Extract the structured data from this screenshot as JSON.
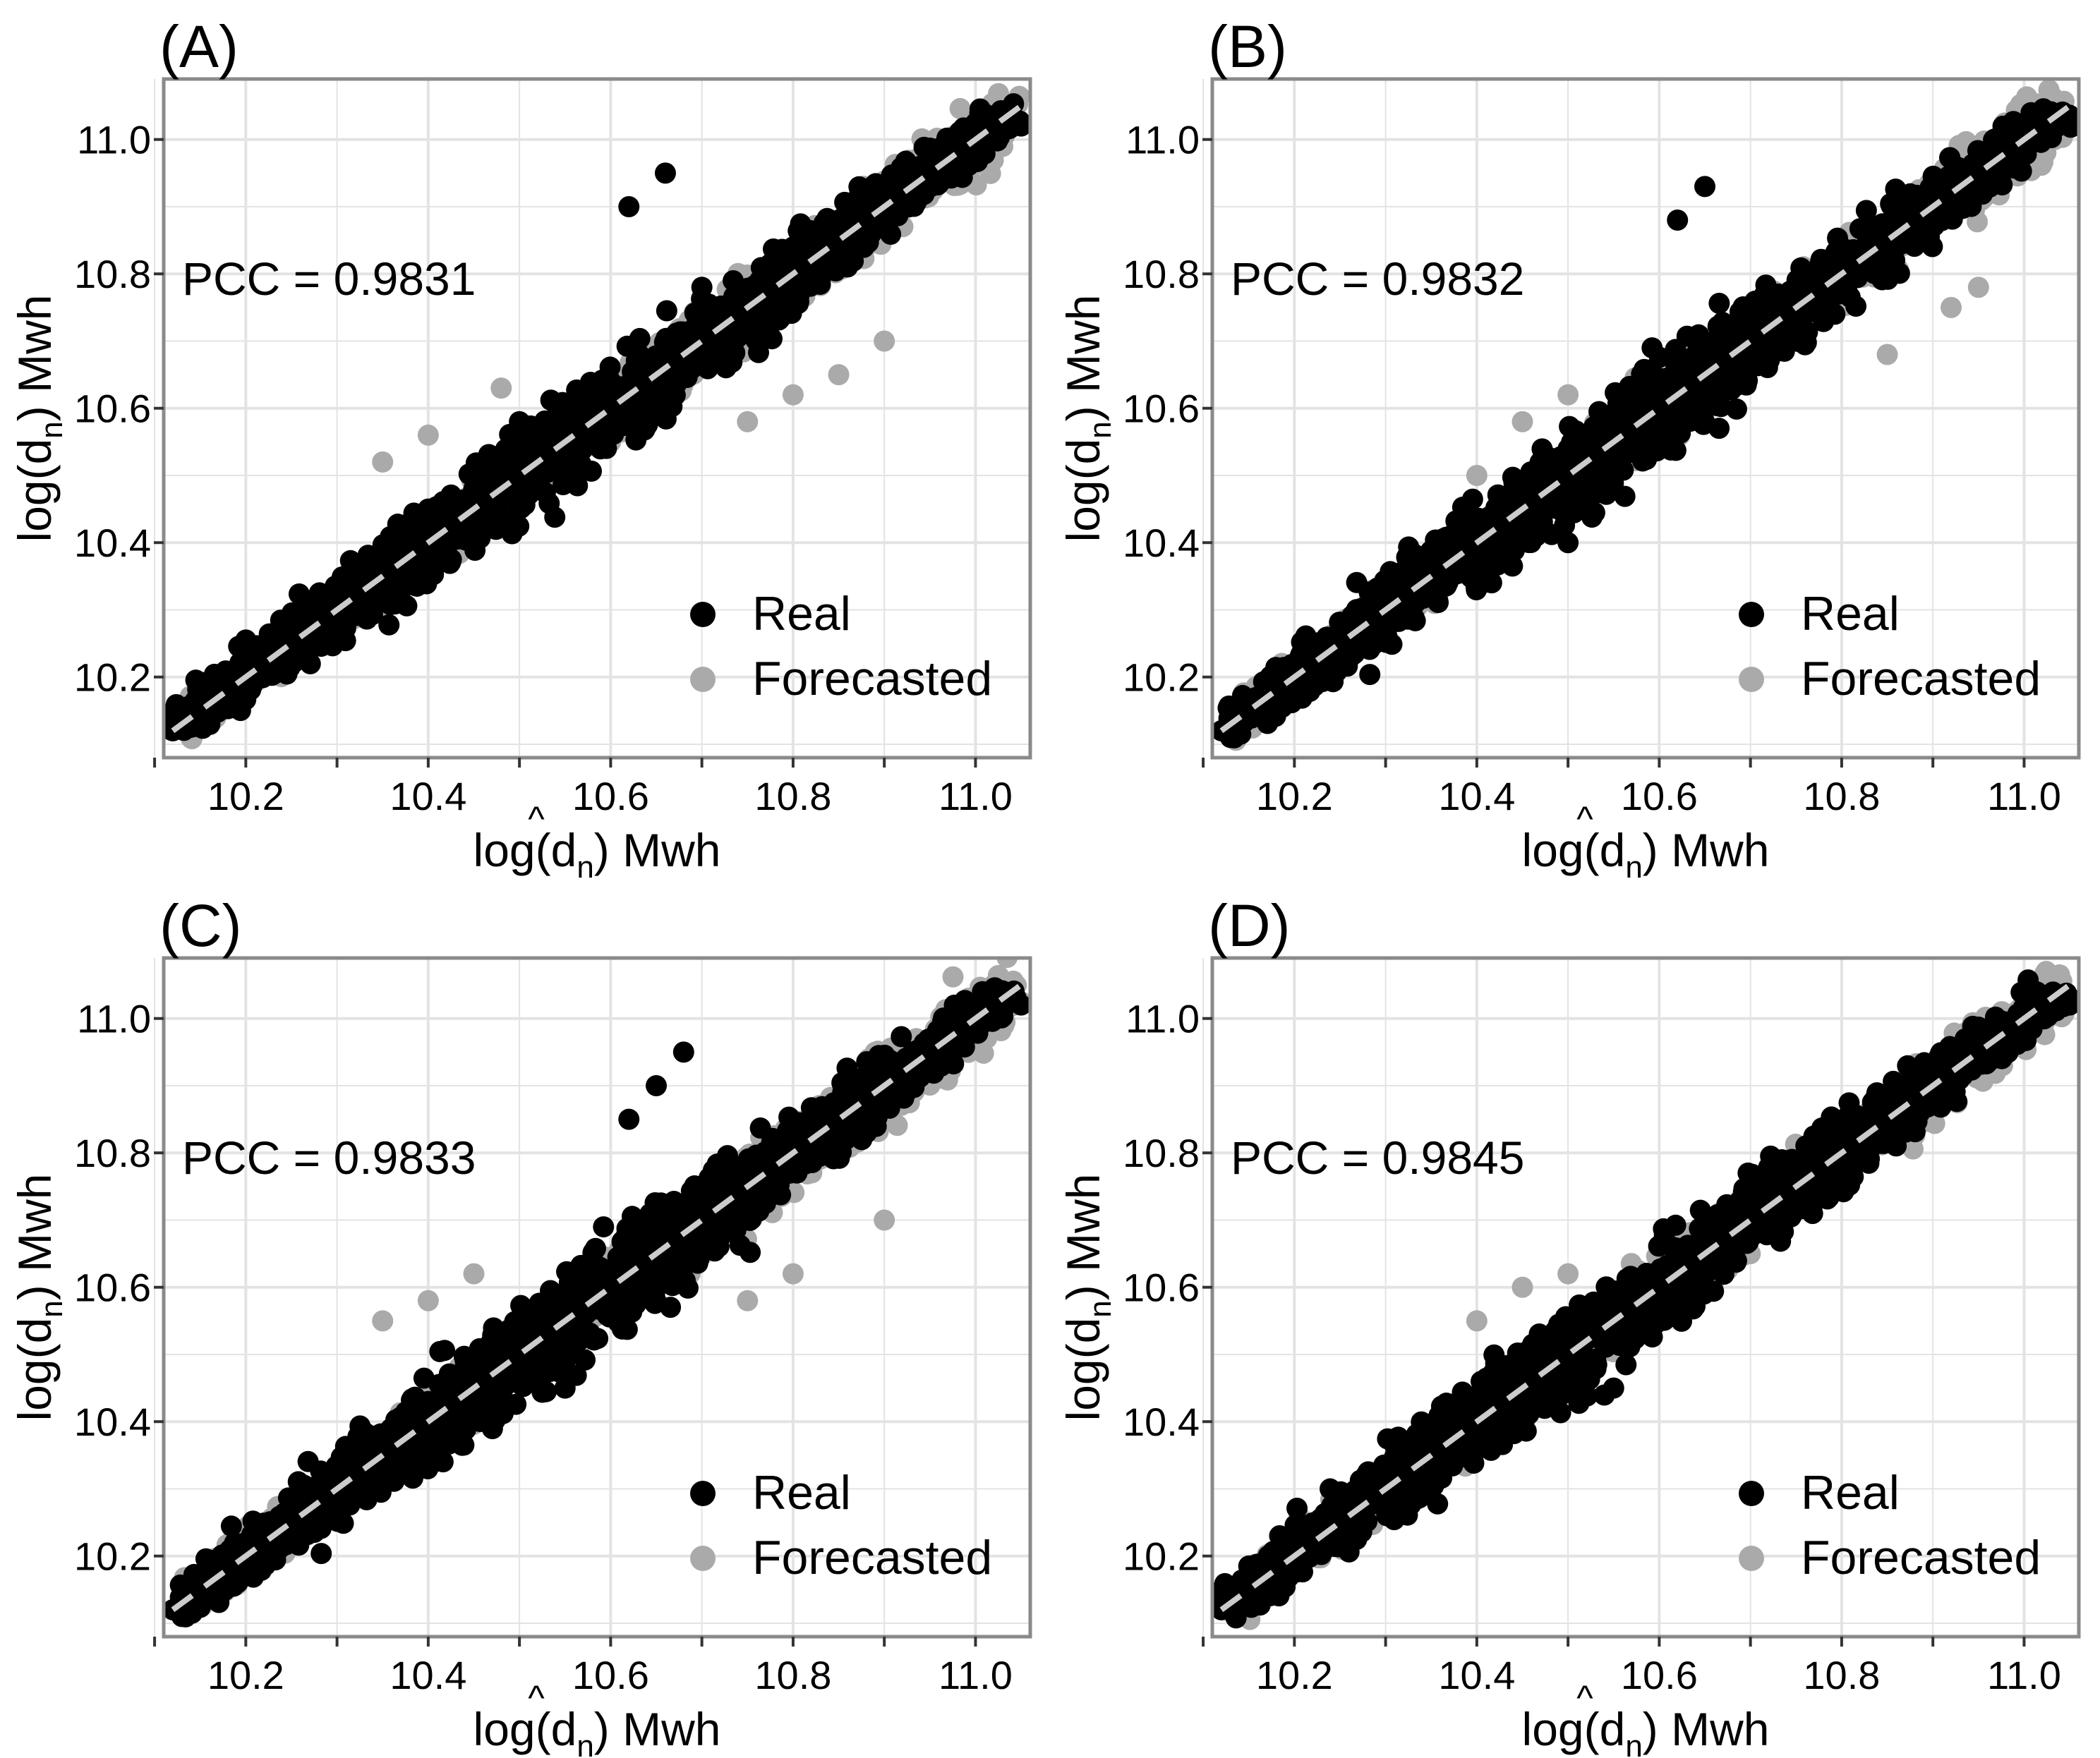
{
  "figure": {
    "axis_x_label_prefix": "log(",
    "axis_x_label_var": "d",
    "axis_x_label_hat": "^",
    "axis_x_label_sub": "n",
    "axis_x_label_suffix": ")  Mwh",
    "axis_y_label_prefix": "log(",
    "axis_y_label_var": "d",
    "axis_y_label_sub": "n",
    "axis_y_label_suffix": ")  Mwh",
    "legend": [
      {
        "label": "Real",
        "color": "#000000"
      },
      {
        "label": "Forecasted",
        "color": "#aaaaaa"
      }
    ],
    "colors": {
      "real": "#000000",
      "forecasted": "#aaaaaa",
      "identity_line": "#cccccc",
      "grid": "#e3e3e3",
      "frame": "#8a8a8a"
    }
  },
  "chart_data": [
    {
      "type": "scatter",
      "panel_label": "(A)",
      "annotation": "PCC = 0.9831",
      "pcc": 0.9831,
      "xlim": [
        10.11,
        11.06
      ],
      "ylim": [
        10.08,
        11.09
      ],
      "x_ticks": [
        "10.2",
        "10.4",
        "10.6",
        "10.8",
        "11.0"
      ],
      "y_ticks": [
        "10.2",
        "10.4",
        "10.6",
        "10.8",
        "11.0"
      ],
      "xlabel": "log(d̂n) Mwh",
      "ylabel": "log(dn) Mwh",
      "reference_line": {
        "from": [
          10.12,
          10.12
        ],
        "to": [
          11.05,
          11.05
        ],
        "style": "dashed"
      },
      "series": [
        {
          "name": "Real",
          "points": [
            [
              10.12,
              10.12
            ],
            [
              10.18,
              10.17
            ],
            [
              10.25,
              10.28
            ],
            [
              10.3,
              10.27
            ],
            [
              10.4,
              10.45
            ],
            [
              10.45,
              10.42
            ],
            [
              10.5,
              10.58
            ],
            [
              10.55,
              10.52
            ],
            [
              10.6,
              10.64
            ],
            [
              10.62,
              10.58
            ],
            [
              10.7,
              10.78
            ],
            [
              10.75,
              10.72
            ],
            [
              10.8,
              10.84
            ],
            [
              10.85,
              10.88
            ],
            [
              10.9,
              10.9
            ],
            [
              10.95,
              10.97
            ],
            [
              11.0,
              11.0
            ],
            [
              11.05,
              11.02
            ],
            [
              10.62,
              10.9
            ],
            [
              10.66,
              10.95
            ],
            [
              10.36,
              10.39
            ],
            [
              10.5,
              10.45
            ]
          ]
        },
        {
          "name": "Forecasted",
          "points": [
            [
              10.12,
              10.12
            ],
            [
              10.2,
              10.22
            ],
            [
              10.3,
              10.3
            ],
            [
              10.35,
              10.52
            ],
            [
              10.4,
              10.56
            ],
            [
              10.48,
              10.63
            ],
            [
              10.55,
              10.52
            ],
            [
              10.6,
              10.61
            ],
            [
              10.7,
              10.7
            ],
            [
              10.8,
              10.8
            ],
            [
              10.9,
              10.92
            ],
            [
              11.0,
              11.02
            ],
            [
              11.02,
              11.05
            ],
            [
              10.75,
              10.58
            ],
            [
              10.8,
              10.62
            ],
            [
              10.85,
              10.65
            ],
            [
              10.9,
              10.7
            ],
            [
              10.6,
              10.55
            ]
          ]
        }
      ]
    },
    {
      "type": "scatter",
      "panel_label": "(B)",
      "annotation": "PCC = 0.9832",
      "pcc": 0.9832,
      "xlim": [
        10.11,
        11.06
      ],
      "ylim": [
        10.08,
        11.09
      ],
      "x_ticks": [
        "10.2",
        "10.4",
        "10.6",
        "10.8",
        "11.0"
      ],
      "y_ticks": [
        "10.2",
        "10.4",
        "10.6",
        "10.8",
        "11.0"
      ],
      "xlabel": "log(d̂n) Mwh",
      "ylabel": "log(dn) Mwh",
      "reference_line": {
        "from": [
          10.12,
          10.12
        ],
        "to": [
          11.05,
          11.05
        ],
        "style": "dashed"
      },
      "series": [
        {
          "name": "Real",
          "points": [
            [
              10.12,
              10.12
            ],
            [
              10.2,
              10.18
            ],
            [
              10.3,
              10.3
            ],
            [
              10.4,
              10.42
            ],
            [
              10.5,
              10.5
            ],
            [
              10.6,
              10.62
            ],
            [
              10.65,
              10.68
            ],
            [
              10.7,
              10.75
            ],
            [
              10.8,
              10.82
            ],
            [
              10.9,
              10.92
            ],
            [
              11.0,
              11.0
            ],
            [
              11.05,
              11.03
            ],
            [
              10.62,
              10.88
            ],
            [
              10.65,
              10.93
            ],
            [
              10.5,
              10.4
            ]
          ]
        },
        {
          "name": "Forecasted",
          "points": [
            [
              10.12,
              10.12
            ],
            [
              10.2,
              10.22
            ],
            [
              10.3,
              10.32
            ],
            [
              10.4,
              10.5
            ],
            [
              10.45,
              10.58
            ],
            [
              10.5,
              10.62
            ],
            [
              10.6,
              10.55
            ],
            [
              10.7,
              10.68
            ],
            [
              10.8,
              10.78
            ],
            [
              10.9,
              10.9
            ],
            [
              11.0,
              11.03
            ],
            [
              11.02,
              11.05
            ],
            [
              10.95,
              10.78
            ],
            [
              10.92,
              10.75
            ],
            [
              10.85,
              10.68
            ]
          ]
        }
      ]
    },
    {
      "type": "scatter",
      "panel_label": "(C)",
      "annotation": "PCC = 0.9833",
      "pcc": 0.9833,
      "xlim": [
        10.11,
        11.06
      ],
      "ylim": [
        10.08,
        11.09
      ],
      "x_ticks": [
        "10.2",
        "10.4",
        "10.6",
        "10.8",
        "11.0"
      ],
      "y_ticks": [
        "10.2",
        "10.4",
        "10.6",
        "10.8",
        "11.0"
      ],
      "xlabel": "log(d̂n) Mwh",
      "ylabel": "log(dn) Mwh",
      "reference_line": {
        "from": [
          10.12,
          10.12
        ],
        "to": [
          11.05,
          11.05
        ],
        "style": "dashed"
      },
      "series": [
        {
          "name": "Real",
          "points": [
            [
              10.12,
              10.12
            ],
            [
              10.2,
              10.18
            ],
            [
              10.3,
              10.3
            ],
            [
              10.4,
              10.43
            ],
            [
              10.5,
              10.5
            ],
            [
              10.6,
              10.6
            ],
            [
              10.7,
              10.72
            ],
            [
              10.8,
              10.82
            ],
            [
              10.9,
              10.92
            ],
            [
              11.0,
              11.0
            ],
            [
              11.05,
              11.02
            ],
            [
              10.62,
              10.85
            ],
            [
              10.65,
              10.9
            ],
            [
              10.68,
              10.95
            ],
            [
              10.55,
              10.45
            ]
          ]
        },
        {
          "name": "Forecasted",
          "points": [
            [
              10.12,
              10.12
            ],
            [
              10.2,
              10.22
            ],
            [
              10.35,
              10.55
            ],
            [
              10.4,
              10.58
            ],
            [
              10.45,
              10.62
            ],
            [
              10.6,
              10.6
            ],
            [
              10.7,
              10.7
            ],
            [
              10.8,
              10.8
            ],
            [
              10.9,
              10.92
            ],
            [
              11.0,
              11.03
            ],
            [
              11.02,
              11.05
            ],
            [
              10.75,
              10.58
            ],
            [
              10.8,
              10.62
            ],
            [
              10.9,
              10.7
            ]
          ]
        }
      ]
    },
    {
      "type": "scatter",
      "panel_label": "(D)",
      "annotation": "PCC = 0.9845",
      "pcc": 0.9845,
      "xlim": [
        10.11,
        11.06
      ],
      "ylim": [
        10.08,
        11.09
      ],
      "x_ticks": [
        "10.2",
        "10.4",
        "10.6",
        "10.8",
        "11.0"
      ],
      "y_ticks": [
        "10.2",
        "10.4",
        "10.6",
        "10.8",
        "11.0"
      ],
      "xlabel": "log(d̂n) Mwh",
      "ylabel": "log(dn) Mwh",
      "reference_line": {
        "from": [
          10.12,
          10.12
        ],
        "to": [
          11.05,
          11.05
        ],
        "style": "dashed"
      },
      "series": [
        {
          "name": "Real",
          "points": [
            [
              10.12,
              10.12
            ],
            [
              10.2,
              10.2
            ],
            [
              10.3,
              10.3
            ],
            [
              10.4,
              10.42
            ],
            [
              10.5,
              10.52
            ],
            [
              10.6,
              10.62
            ],
            [
              10.7,
              10.72
            ],
            [
              10.8,
              10.82
            ],
            [
              10.9,
              10.92
            ],
            [
              11.0,
              11.0
            ],
            [
              11.05,
              11.02
            ],
            [
              10.55,
              10.45
            ]
          ]
        },
        {
          "name": "Forecasted",
          "points": [
            [
              10.12,
              10.12
            ],
            [
              10.2,
              10.22
            ],
            [
              10.3,
              10.32
            ],
            [
              10.4,
              10.55
            ],
            [
              10.45,
              10.6
            ],
            [
              10.5,
              10.62
            ],
            [
              10.6,
              10.6
            ],
            [
              10.7,
              10.7
            ],
            [
              10.8,
              10.78
            ],
            [
              10.9,
              10.85
            ],
            [
              11.0,
              11.03
            ],
            [
              11.02,
              11.05
            ]
          ]
        }
      ]
    }
  ]
}
